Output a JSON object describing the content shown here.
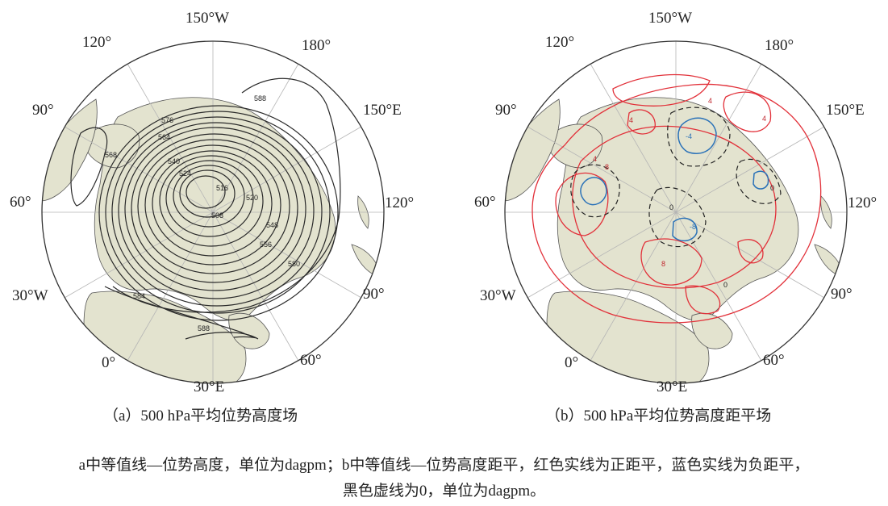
{
  "panels": [
    {
      "id": "a",
      "caption": "（a）500 hPa平均位势高度场",
      "lon_labels": [
        "150°W",
        "180°",
        "150°E",
        "120°",
        "90°",
        "60°",
        "30°E",
        "0°",
        "30°W",
        "60°",
        "90°",
        "120°"
      ],
      "contour_labels": [
        "576",
        "564",
        "540",
        "524",
        "516",
        "508",
        "520",
        "548",
        "556",
        "580",
        "584",
        "588",
        "588",
        "568"
      ]
    },
    {
      "id": "b",
      "caption": "（b）500 hPa平均位势高度距平场",
      "lon_labels": [
        "150°W",
        "180°",
        "150°E",
        "120°",
        "90°",
        "60°",
        "30°E",
        "0°",
        "30°W",
        "60°",
        "90°",
        "120°"
      ],
      "contour_labels": [
        "4",
        "-4",
        "0",
        "8",
        "4",
        "-8",
        "0",
        "8",
        "4",
        "0",
        "4"
      ]
    }
  ],
  "note": {
    "line1": "a中等值线—位势高度，单位为dagpm；b中等值线—位势高度距平，红色实线为正距平，蓝色实线为负距平，",
    "line2": "黑色虚线为0，单位为dagpm。"
  },
  "colors": {
    "land": "#e3e3cf",
    "ocean": "#ffffff",
    "contour_a": "#2a2a2a",
    "positive_anomaly": "#e2313a",
    "negative_anomaly": "#2b72b8",
    "zero_line": "#222222",
    "graticule": "#b5b5b5"
  }
}
